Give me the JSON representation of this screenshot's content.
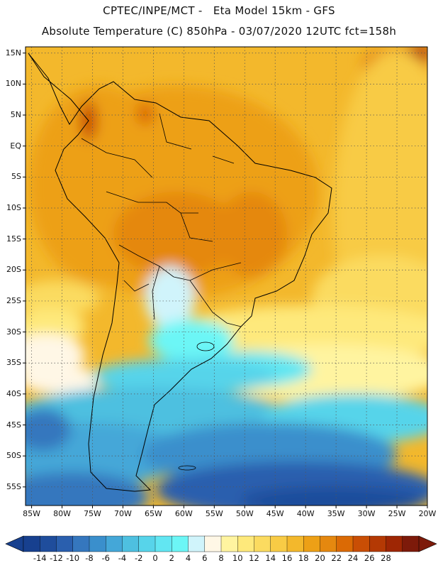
{
  "header": {
    "line1": "CPTEC/INPE/MCT -   Eta Model 15km - GFS",
    "line2": "Absolute Temperature (C) 850hPa - 03/07/2020 12UTC fct=158h"
  },
  "map": {
    "lon_range": [
      -86,
      -20
    ],
    "lat_range": [
      -58,
      16
    ],
    "lat_ticks": [
      {
        "lat": 15,
        "label": "15N"
      },
      {
        "lat": 10,
        "label": "10N"
      },
      {
        "lat": 5,
        "label": "5N"
      },
      {
        "lat": 0,
        "label": "EQ"
      },
      {
        "lat": -5,
        "label": "5S"
      },
      {
        "lat": -10,
        "label": "10S"
      },
      {
        "lat": -15,
        "label": "15S"
      },
      {
        "lat": -20,
        "label": "20S"
      },
      {
        "lat": -25,
        "label": "25S"
      },
      {
        "lat": -30,
        "label": "30S"
      },
      {
        "lat": -35,
        "label": "35S"
      },
      {
        "lat": -40,
        "label": "40S"
      },
      {
        "lat": -45,
        "label": "45S"
      },
      {
        "lat": -50,
        "label": "50S"
      },
      {
        "lat": -55,
        "label": "55S"
      }
    ],
    "lon_ticks": [
      {
        "lon": -85,
        "label": "85W"
      },
      {
        "lon": -80,
        "label": "80W"
      },
      {
        "lon": -75,
        "label": "75W"
      },
      {
        "lon": -70,
        "label": "70W"
      },
      {
        "lon": -65,
        "label": "65W"
      },
      {
        "lon": -60,
        "label": "60W"
      },
      {
        "lon": -55,
        "label": "55W"
      },
      {
        "lon": -50,
        "label": "50W"
      },
      {
        "lon": -45,
        "label": "45W"
      },
      {
        "lon": -40,
        "label": "40W"
      },
      {
        "lon": -35,
        "label": "35W"
      },
      {
        "lon": -30,
        "label": "30W"
      },
      {
        "lon": -25,
        "label": "25W"
      },
      {
        "lon": -20,
        "label": "20W"
      }
    ]
  },
  "colorbar": {
    "labels": [
      "-14",
      "-12",
      "-10",
      "-8",
      "-6",
      "-4",
      "-2",
      "0",
      "2",
      "4",
      "6",
      "8",
      "10",
      "12",
      "14",
      "16",
      "18",
      "20",
      "22",
      "24",
      "26",
      "28"
    ],
    "colors": [
      "#17408f",
      "#1f4d9c",
      "#2a5fae",
      "#3577be",
      "#3a8fcc",
      "#44a7d8",
      "#4ec0e0",
      "#57d4ea",
      "#62e6f2",
      "#6cf6f6",
      "#d0f4fb",
      "#fff7e6",
      "#fff4a0",
      "#fee97b",
      "#fbdb60",
      "#f8cb45",
      "#f3b82c",
      "#eda016",
      "#e5880f",
      "#db6a05",
      "#c94e05",
      "#b43904",
      "#9e2604",
      "#7d1a0a"
    ],
    "under_color": "#17408f",
    "over_color": "#7d1a0a"
  }
}
